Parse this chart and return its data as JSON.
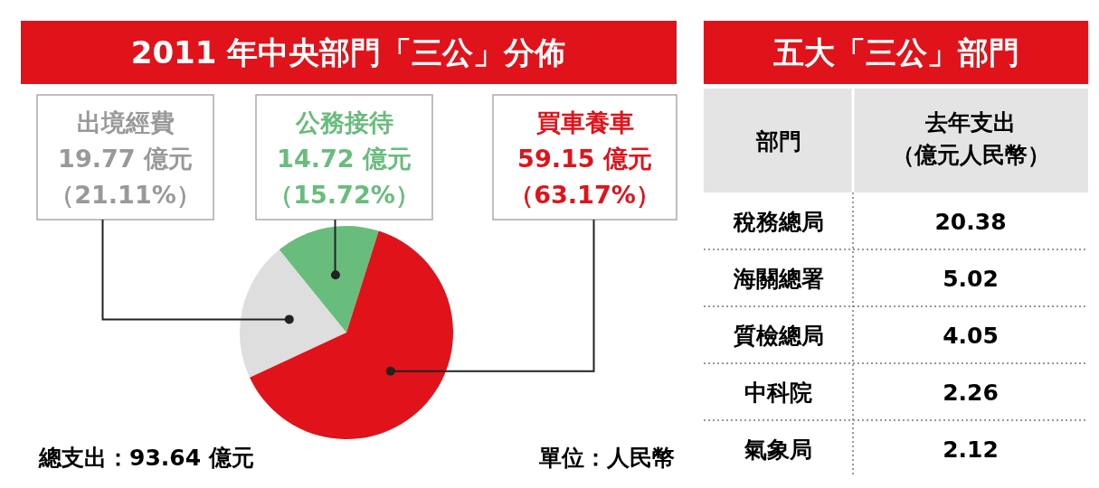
{
  "chart_data": [
    {
      "type": "pie",
      "title": "2011 年中央部門「三公」分佈",
      "categories": [
        "出境經費",
        "公務接待",
        "買車養車"
      ],
      "values": [
        19.77,
        14.72,
        59.15
      ],
      "colors": [
        "#dedede",
        "#68bd7c",
        "#e0131b"
      ],
      "value_labels": [
        "19.77 億元（21.11%）",
        "14.72 億元（15.72%）",
        "59.15 億元（63.17%）"
      ],
      "annotations": [
        "總支出：93.64 億元",
        "單位：人民幣"
      ]
    },
    {
      "type": "other",
      "title": "五大「三公」部門",
      "xlabel": "部門",
      "ylabel": "去年支出（億元人民幣）",
      "categories": [
        "稅務總局",
        "海關總署",
        "質檢總局",
        "中科院",
        "氣象局"
      ],
      "values": [
        20.38,
        5.02,
        4.05,
        2.26,
        2.12
      ],
      "data_labels": true
    }
  ]
}
